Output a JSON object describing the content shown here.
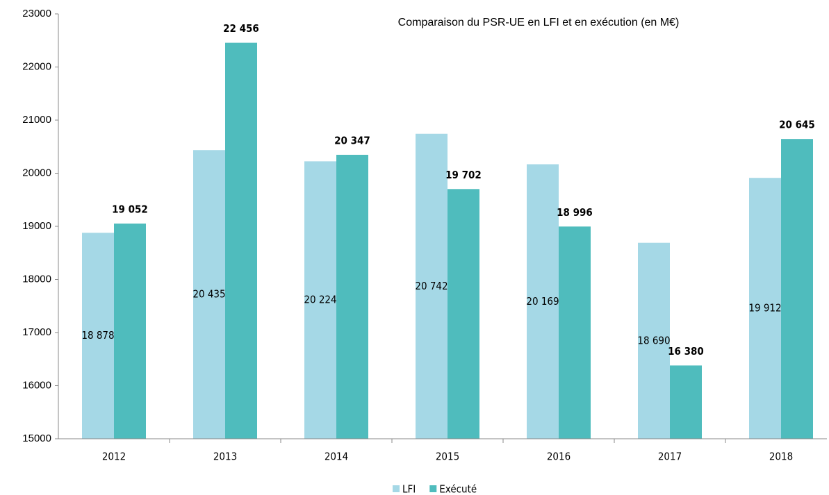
{
  "chart_data": {
    "type": "bar",
    "title": "Comparaison  du PSR-UE  en LFI et en exécution (en M€)",
    "categories": [
      "2012",
      "2013",
      "2014",
      "2015",
      "2016",
      "2017",
      "2018"
    ],
    "series": [
      {
        "name": "LFI",
        "color": "#a5d8e6",
        "values": [
          18878,
          20435,
          20224,
          20742,
          20169,
          18690,
          19912
        ],
        "value_labels": [
          "18 878",
          "20 435",
          "20 224",
          "20 742",
          "20 169",
          "18 690",
          "19 912"
        ]
      },
      {
        "name": "Exécuté",
        "color": "#4fbcbd",
        "values": [
          19052,
          22456,
          20347,
          19702,
          18996,
          16380,
          20645
        ],
        "value_labels": [
          "19 052",
          "22 456",
          "20 347",
          "19 702",
          "18 996",
          "16 380",
          "20 645"
        ]
      }
    ],
    "ylim": [
      15000,
      23000
    ],
    "yticks": [
      15000,
      16000,
      17000,
      18000,
      19000,
      20000,
      21000,
      22000,
      23000
    ]
  }
}
